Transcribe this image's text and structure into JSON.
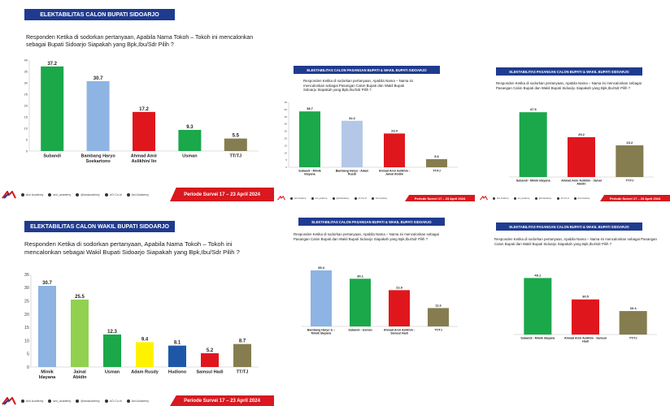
{
  "footer": {
    "logo": "ARC",
    "socials": [
      "Arci Academy",
      "arci_academy",
      "@arciacademy",
      "ACI Co.id",
      "Arci Academy"
    ],
    "period": "Periode Survei 17 – 23  April 2024"
  },
  "colors": {
    "title_bg": "#1f3b8f",
    "period_bg": "#d9181f",
    "green": "#1aa84a",
    "blue": "#8db4e2",
    "red": "#e0161d",
    "yellow": "#fff200",
    "navy": "#1f57a8",
    "darkred": "#c0141a",
    "gray": "#857d4f"
  },
  "slides": [
    {
      "id": "s1",
      "title": "ELEKTABILITAS CALON BUPATI SIDOARJO",
      "question": "Responden Ketika di sodorkan pertanyaan, Apabila Nama Tokoh – Tokoh  ini mencalonkan sebagai Bupati Sidoarjo Siapakah yang Bpk,Ibu/Sdr Pilih ?",
      "chart_data": {
        "type": "bar",
        "categories": [
          "Subandi",
          "Bambang Haryo Soekartono",
          "Ahmad Amir Aslikhin/ Iin",
          "Usman",
          "TT/TJ"
        ],
        "values": [
          37.2,
          30.7,
          17.2,
          9.3,
          5.5
        ],
        "colors": [
          "#1aa84a",
          "#8db4e2",
          "#e0161d",
          "#1aa84a",
          "#857d4f"
        ],
        "ylim": [
          0,
          40
        ],
        "yticks": [
          "0",
          "5",
          "10",
          "15",
          "20",
          "25",
          "30",
          "35",
          "40"
        ]
      }
    },
    {
      "id": "s2",
      "title": "ELEKTABILITAS CALON PASANGAN BUPATI & WAKIL BUPATI SIDOARJO",
      "question": "Responden Ketika di sodorkan pertanyaan, Apabila Nama – Nama  ini mencalonkan sebagai Pasangan Calon Bupati dan Wakil Bupati Sidoarjo Siapakah yang Bpk,Ibu/Sdr Pilih ?",
      "chart_data": {
        "type": "bar",
        "categories": [
          "Subandi - Mimik Idayana",
          "Bambang Haryo - Adam Rusdi",
          "Ahmad Amir Aslikhin - Jainal Abidin",
          "TT/TJ"
        ],
        "values": [
          38.7,
          32.2,
          23.4,
          5.6
        ],
        "colors": [
          "#1aa84a",
          "#b4c7e7",
          "#e0161d",
          "#857d4f"
        ],
        "ylim": [
          0,
          45
        ],
        "yticks": [
          "0",
          "5",
          "10",
          "15",
          "20",
          "25",
          "30",
          "35",
          "40",
          "45"
        ]
      }
    },
    {
      "id": "s3",
      "title": "ELEKTABILITAS PASANGAN CALON BUPATI & WAKIL BUPATI SIDOARJO",
      "question": "Responden Ketika di sodorkan pertanyaan, Apabila Nama – Nama  ini mencalonkan sebagai Pasangan Calon Bupati dan Wakil Bupati Sidoarjo Siapakah yang Bpk,Ibu/Sdr Pilih ?",
      "chart_data": {
        "type": "bar",
        "categories": [
          "Subandi - Mimik Idayana",
          "Ahmad Amir Aslikhin - Jainal Abidin",
          "TT/TJ"
        ],
        "values": [
          47.5,
          29.2,
          23.2
        ],
        "colors": [
          "#1aa84a",
          "#e0161d",
          "#857d4f"
        ],
        "ylim": [
          0,
          50
        ],
        "yticks": []
      }
    },
    {
      "id": "s4",
      "title": "ELEKTABILITAS CALON WAKIL BUPATI SIDOARJO",
      "question": "Responden Ketika di sodorkan pertanyaan, Apabila Nama Tokoh – Tokoh  ini mencalonkan sebagai Wakil  Bupati Sidoarjo Siapakah yang Bpk,Ibu/Sdr Pilih ?",
      "chart_data": {
        "type": "bar",
        "categories": [
          "Mimik Idayana",
          "Jainal Abidin",
          "Usman",
          "Adam Rusdy",
          "Hudiono",
          "Samsul Hadi",
          "TT/TJ"
        ],
        "values": [
          30.7,
          25.5,
          12.3,
          9.4,
          8.1,
          5.2,
          8.7
        ],
        "colors": [
          "#8db4e2",
          "#92d050",
          "#1aa84a",
          "#fff200",
          "#1f57a8",
          "#e0161d",
          "#857d4f"
        ],
        "ylim": [
          0,
          35
        ],
        "yticks": [
          "0",
          "5",
          "10",
          "15",
          "20",
          "25",
          "30",
          "35"
        ]
      }
    },
    {
      "id": "s5",
      "title": "ELEKTABILITAS CALON PASANGAN BUPATI & WAKIL BUPATI SIDOARJO",
      "question": "Responden Ketika di sodorkan pertanyaan, Apabila Nama – Nama  ini mencalonkan sebagai Pasangan Calon Bupati dan Wakil Bupati Sidoarjo Siapakah yang Bpk,Ibu/Sdr Pilih ?",
      "chart_data": {
        "type": "bar",
        "categories": [
          "Bambang Haryo S. - Mimik Idayana",
          "Subandi - Usman",
          "Ahmad Amir Aslikhin - Samsul Hadi",
          "TT/TJ"
        ],
        "values": [
          35.4,
          30.1,
          22.9,
          11.6
        ],
        "colors": [
          "#8db4e2",
          "#1aa84a",
          "#e0161d",
          "#857d4f"
        ],
        "ylim": [
          0,
          40
        ],
        "yticks": []
      }
    },
    {
      "id": "s6",
      "title": "ELEKTABILITAS PASANGAN CALON BUPATI & WAKIL BUPATI SIDOARJO",
      "question": "Responden Ketika di sodorkan pertanyaan, Apabila Nama – Nama  ini mencalonkan sebagai Pasangan Calon Bupati dan Wakil Bupati Sidoarjo Siapakah yang Bpk,Ibu/Sdr Pilih ?",
      "chart_data": {
        "type": "bar",
        "categories": [
          "Subandi - Mimik Idayana",
          "Ahmad Amir Aslikhin - Samsul Hadi",
          "TT/TJ"
        ],
        "values": [
          49.1,
          30.5,
          20.4
        ],
        "colors": [
          "#1aa84a",
          "#e0161d",
          "#857d4f"
        ],
        "ylim": [
          0,
          55
        ],
        "yticks": []
      }
    }
  ]
}
